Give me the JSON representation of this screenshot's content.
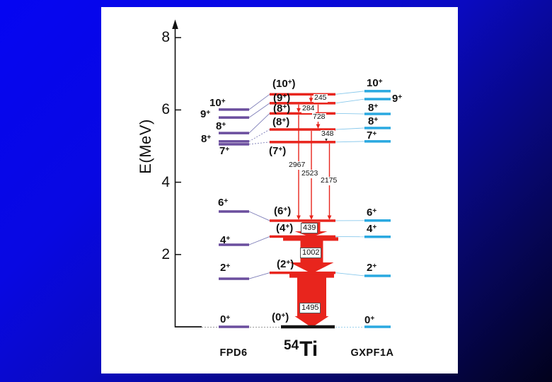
{
  "slide": {
    "background_top_color": "#0505f2",
    "background_bottom_color": "#02021c",
    "panel_color": "#ffffff"
  },
  "chart_data": {
    "type": "level-scheme",
    "title": "54Ti",
    "ylabel": "E(MeV)",
    "ylim": [
      0,
      8.5
    ],
    "grid": false,
    "axis": {
      "ticks": [
        {
          "label": "8",
          "E": 8
        },
        {
          "label": "6",
          "E": 6
        },
        {
          "label": "4",
          "E": 4
        },
        {
          "label": "2",
          "E": 2
        }
      ]
    },
    "columns": [
      {
        "id": "fpd6",
        "caption": "FPD6",
        "color": "#6b4e9e",
        "levels": [
          {
            "spin": "10",
            "parens": false,
            "E": 6.01,
            "lx": 296,
            "ly": 138
          },
          {
            "spin": "9",
            "parens": false,
            "E": 5.79,
            "lx": 283,
            "ly": 154
          },
          {
            "spin": "8",
            "parens": false,
            "E": 5.36,
            "lx": 305,
            "ly": 171
          },
          {
            "spin": "8",
            "parens": false,
            "E": 5.13,
            "lx": 284,
            "ly": 189
          },
          {
            "spin": "7",
            "parens": false,
            "E": 5.05,
            "lx": 310,
            "ly": 206
          },
          {
            "spin": "6",
            "parens": false,
            "E": 3.19,
            "lx": 308,
            "ly": 279
          },
          {
            "spin": "4",
            "parens": false,
            "E": 2.27,
            "lx": 311,
            "ly": 332
          },
          {
            "spin": "2",
            "parens": false,
            "E": 1.33,
            "lx": 311,
            "ly": 371
          },
          {
            "spin": "0",
            "parens": false,
            "E": 0,
            "lx": 311,
            "ly": 444
          }
        ]
      },
      {
        "id": "exp",
        "caption": "54Ti",
        "caption_mass": "54",
        "caption_element": "Ti",
        "color": "#e8251d",
        "ground_color": "#151515",
        "levels": [
          {
            "spin": "10",
            "parens": true,
            "E": 6.432,
            "lx": 385,
            "ly": 111
          },
          {
            "spin": "9",
            "parens": true,
            "E": 6.187,
            "lx": 386,
            "ly": 131
          },
          {
            "spin": "8",
            "parens": true,
            "E": 5.903,
            "lx": 386,
            "ly": 146
          },
          {
            "spin": "8",
            "parens": true,
            "E": 5.459,
            "lx": 385,
            "ly": 165
          },
          {
            "spin": "7",
            "parens": true,
            "E": 5.111,
            "lx": 380,
            "ly": 206
          },
          {
            "spin": "6",
            "parens": true,
            "E": 2.936,
            "lx": 387,
            "ly": 291
          },
          {
            "spin": "4",
            "parens": true,
            "E": 2.497,
            "lx": 390,
            "ly": 315
          },
          {
            "spin": "2",
            "parens": true,
            "E": 1.495,
            "lx": 391,
            "ly": 366
          },
          {
            "spin": "0",
            "parens": true,
            "E": 0,
            "ground": true,
            "lx": 384,
            "ly": 441
          }
        ],
        "transitions": [
          {
            "label": "245",
            "kind": "thin",
            "x": 439.5,
            "from": 6.432,
            "to": 6.187,
            "lx": 443,
            "ly": 133
          },
          {
            "label": "284",
            "kind": "thin",
            "x": 422,
            "from": 6.187,
            "to": 5.903,
            "lx": 426,
            "ly": 148
          },
          {
            "label": "728",
            "kind": "thin",
            "x": 449.5,
            "from": 6.187,
            "to": 5.459,
            "lx": 441,
            "ly": 160
          },
          {
            "label": "348",
            "kind": "thin",
            "x": 461,
            "from": 5.459,
            "to": 5.111,
            "lx": 453,
            "ly": 184,
            "head_color": "#222222"
          },
          {
            "label": "2967",
            "kind": "thin",
            "x": 422,
            "from": 5.903,
            "to": 2.936,
            "lx": 407,
            "ly": 228
          },
          {
            "label": "2523",
            "kind": "thin",
            "x": 440,
            "from": 5.459,
            "to": 2.936,
            "lx": 425,
            "ly": 240
          },
          {
            "label": "2175",
            "kind": "thin",
            "x": 465.5,
            "from": 5.111,
            "to": 2.936,
            "lx": 452,
            "ly": 250
          },
          {
            "label": "439",
            "kind": "fat",
            "cx": 439.5,
            "from": 2.936,
            "to": 2.497,
            "body_half": 13,
            "head_half": 23,
            "head_top": 327,
            "box": [
              425,
              315
            ]
          },
          {
            "label": "1002",
            "kind": "fat",
            "cx": 440.5,
            "from": 2.497,
            "to": 1.495,
            "body_half": 16,
            "head_half": 31,
            "head_top": 371,
            "flange": [
              400,
              478,
              5
            ],
            "box": [
              424,
              350
            ]
          },
          {
            "label": "1495",
            "kind": "fat",
            "cx": 440.5,
            "from": 1.495,
            "to": 0,
            "body_half": 20.5,
            "head_half": 24,
            "head_top": 447,
            "flange": [
              409,
              472,
              6
            ],
            "box": [
              423,
              428
            ]
          }
        ]
      },
      {
        "id": "gxpf1a",
        "caption": "GXPF1A",
        "color": "#2aa9e0",
        "levels": [
          {
            "spin": "10",
            "parens": false,
            "E": 6.52,
            "lx": 518,
            "ly": 110
          },
          {
            "spin": "9",
            "parens": false,
            "E": 6.3,
            "lx": 554,
            "ly": 132
          },
          {
            "spin": "8",
            "parens": false,
            "E": 5.89,
            "lx": 520,
            "ly": 145
          },
          {
            "spin": "8",
            "parens": false,
            "E": 5.5,
            "lx": 520,
            "ly": 164
          },
          {
            "spin": "7",
            "parens": false,
            "E": 5.13,
            "lx": 518,
            "ly": 184
          },
          {
            "spin": "6",
            "parens": false,
            "E": 2.94,
            "lx": 518,
            "ly": 293
          },
          {
            "spin": "4",
            "parens": false,
            "E": 2.49,
            "lx": 518,
            "ly": 316
          },
          {
            "spin": "2",
            "parens": false,
            "E": 1.41,
            "lx": 518,
            "ly": 371
          },
          {
            "spin": "0",
            "parens": false,
            "E": 0,
            "lx": 515,
            "ly": 445
          }
        ]
      }
    ]
  }
}
